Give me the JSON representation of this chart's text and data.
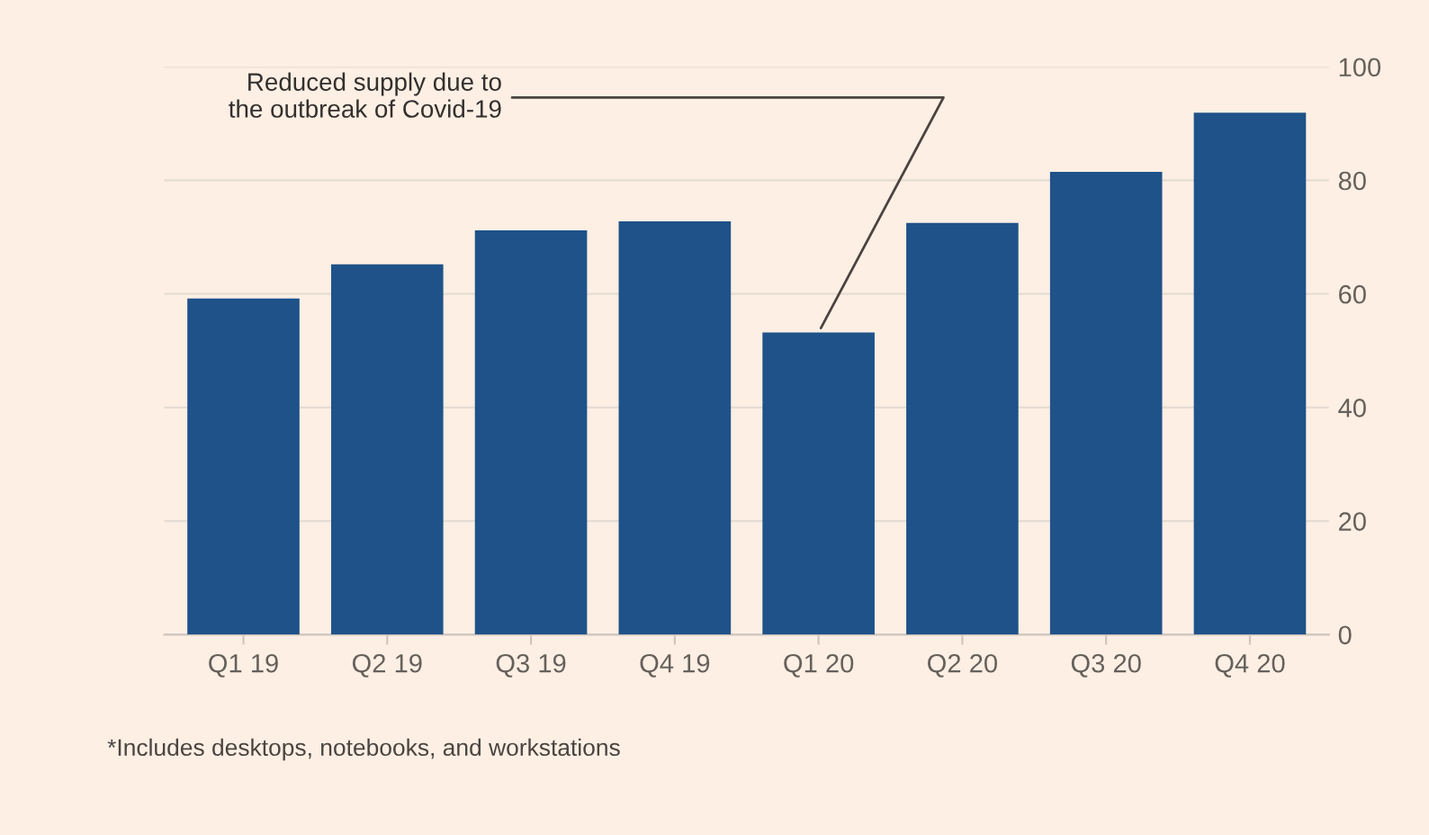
{
  "chart_data": {
    "type": "bar",
    "categories": [
      "Q1 19",
      "Q2 19",
      "Q3 19",
      "Q4 19",
      "Q1 20",
      "Q2 20",
      "Q3 20",
      "Q4 20"
    ],
    "values": [
      59.2,
      65.2,
      71.2,
      72.8,
      53.2,
      72.5,
      81.5,
      91.9
    ],
    "color": "#1f5289",
    "ylim": [
      0,
      100
    ],
    "yticks": [
      0,
      20,
      40,
      60,
      80,
      100
    ],
    "grid": "y",
    "annotations": [
      {
        "text": "Reduced supply due to\nthe outbreak of Covid-19",
        "x": "Q1 20",
        "y": 53.2
      },
      "*Includes desktops, notebooks, and workstations"
    ]
  }
}
